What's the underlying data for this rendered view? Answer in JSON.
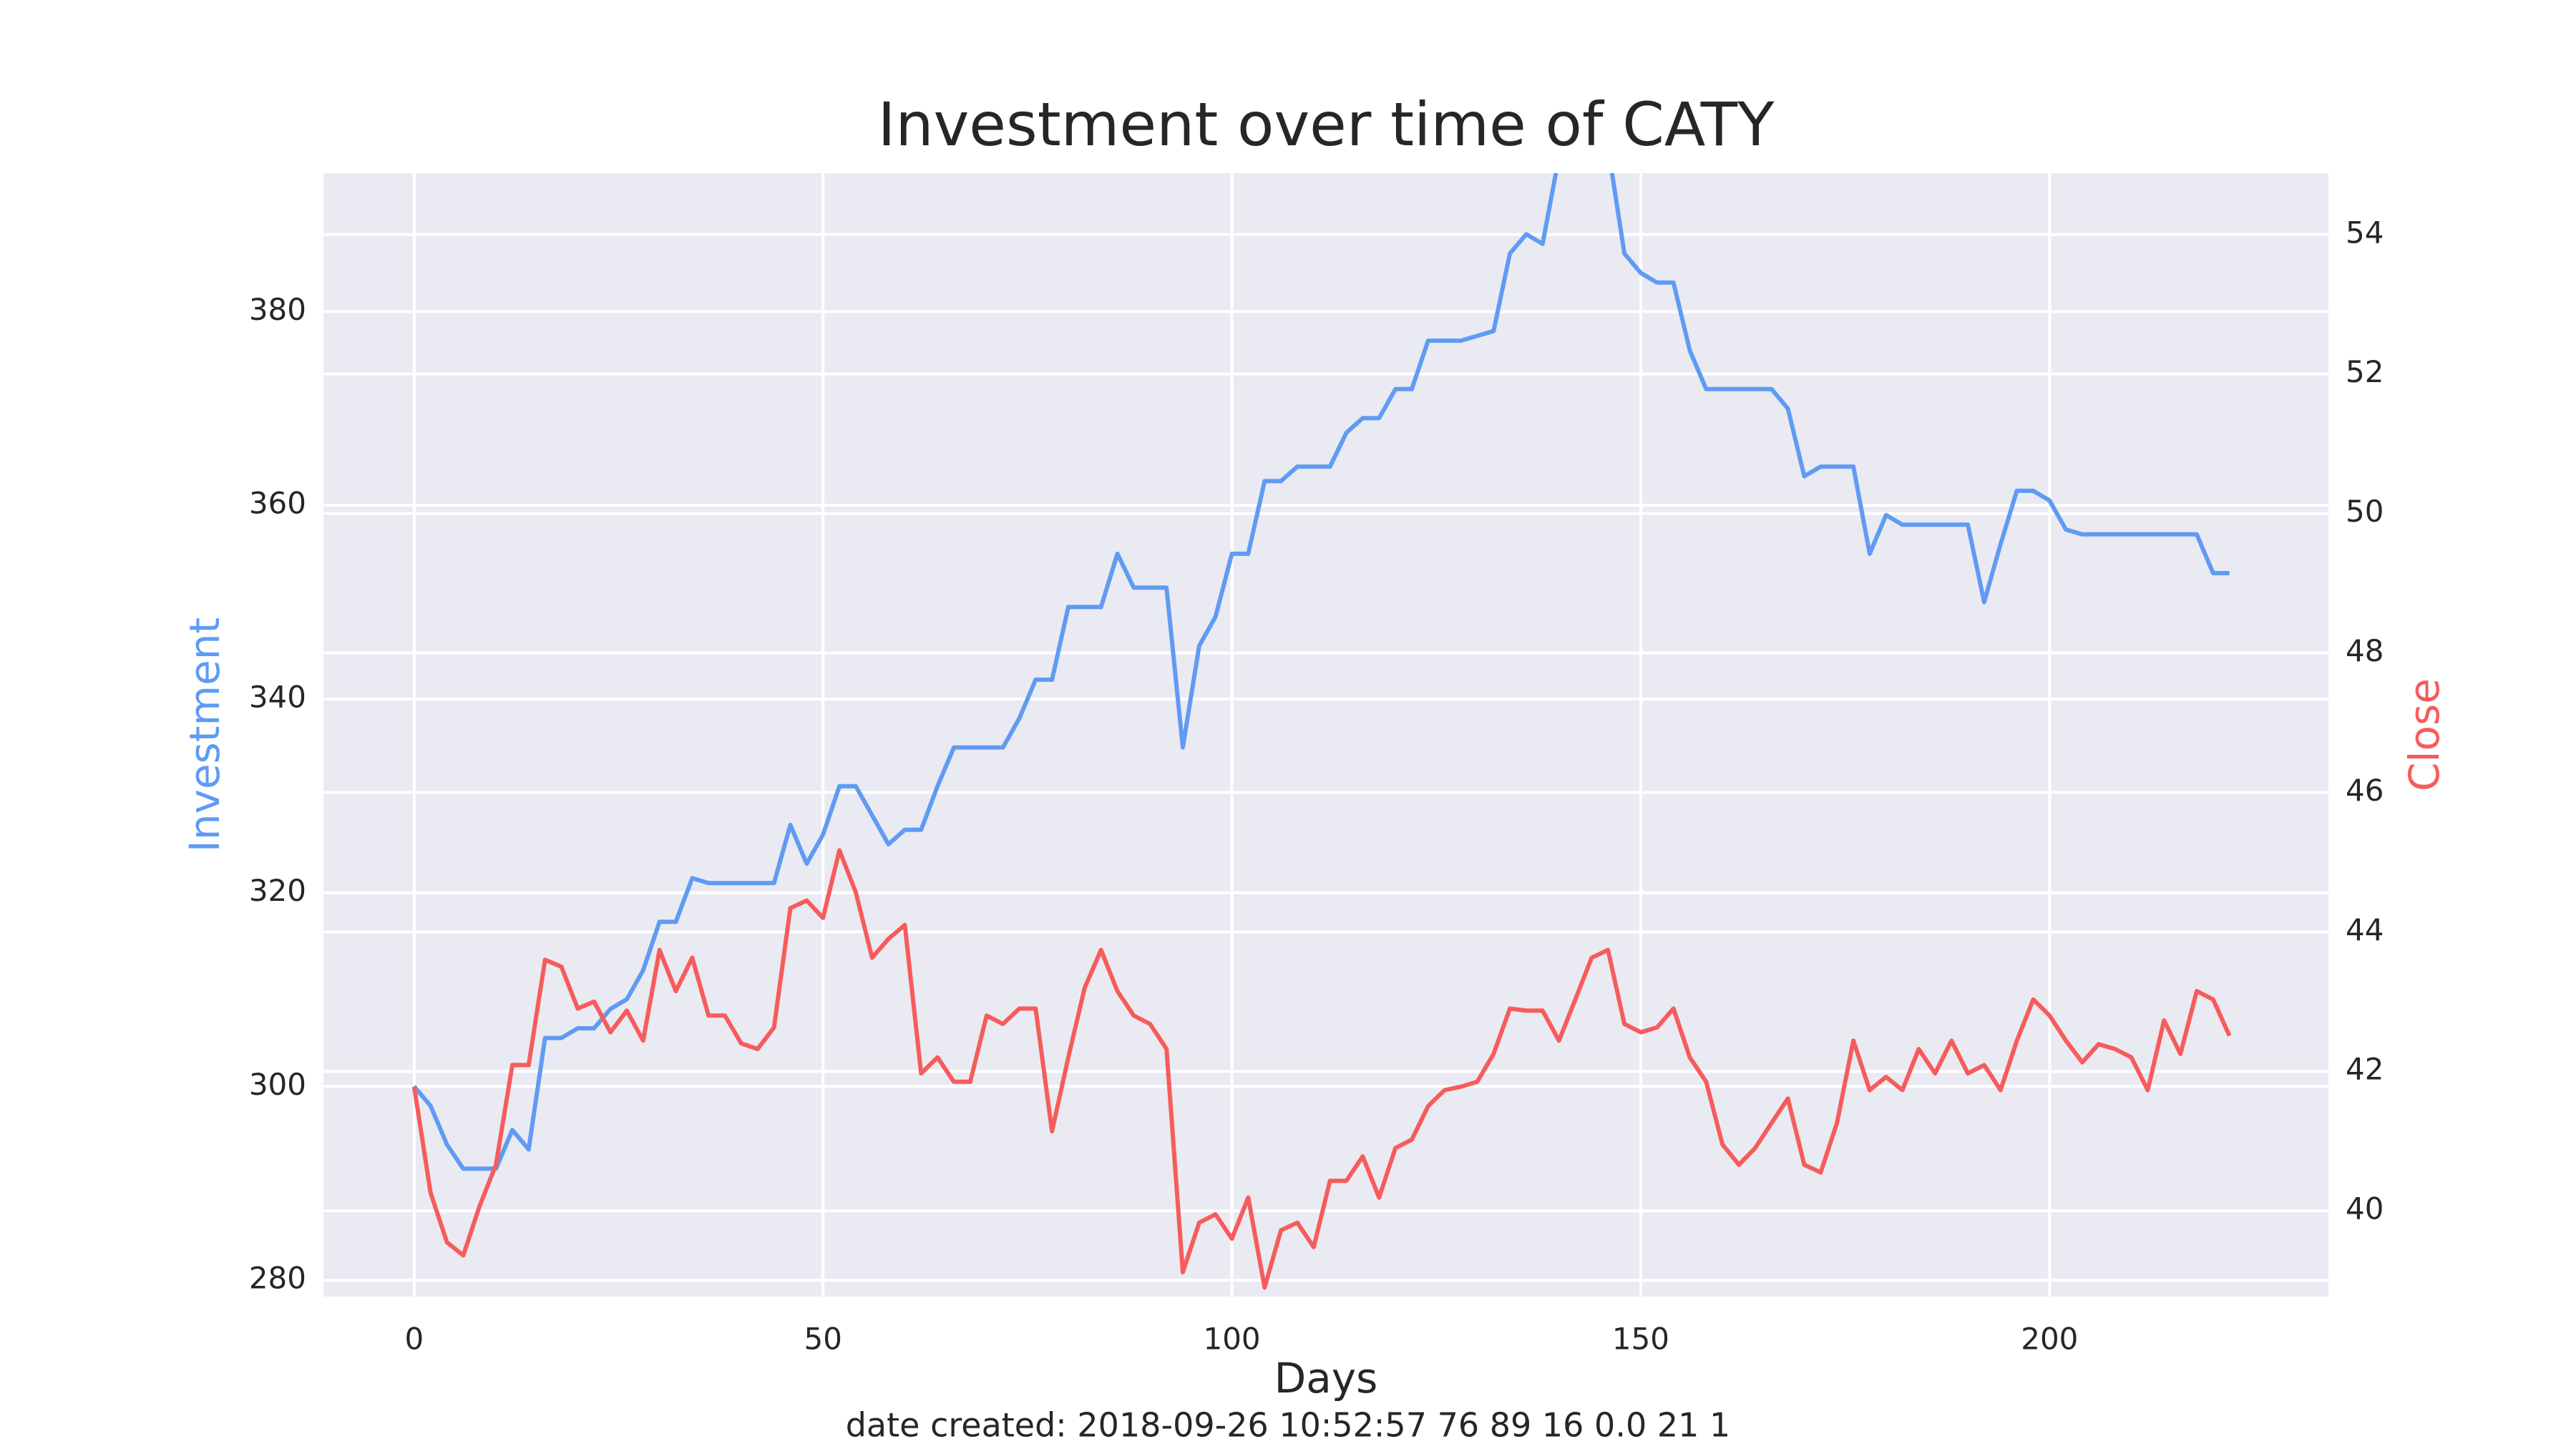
{
  "chart_data": {
    "type": "line",
    "title": "Investment over time of CATY",
    "xlabel": "Days",
    "footnote": "date created: 2018-09-26 10:52:57 76 89 16 0.0 21 1",
    "x": [
      0,
      2,
      4,
      6,
      8,
      10,
      12,
      14,
      16,
      18,
      20,
      22,
      24,
      26,
      28,
      30,
      32,
      34,
      36,
      38,
      40,
      42,
      44,
      46,
      48,
      50,
      52,
      54,
      56,
      58,
      60,
      62,
      64,
      66,
      68,
      70,
      72,
      74,
      76,
      78,
      80,
      82,
      84,
      86,
      88,
      90,
      92,
      94,
      96,
      98,
      100,
      102,
      104,
      106,
      108,
      110,
      112,
      114,
      116,
      118,
      120,
      122,
      124,
      126,
      128,
      130,
      132,
      134,
      136,
      138,
      140,
      142,
      144,
      146,
      148,
      150,
      152,
      154,
      156,
      158,
      160,
      162,
      164,
      166,
      168,
      170,
      172,
      174,
      176,
      178,
      180,
      182,
      184,
      186,
      188,
      190,
      192,
      194,
      196,
      198,
      200,
      202,
      204,
      206,
      208,
      210,
      212,
      214,
      216,
      218,
      220,
      222
    ],
    "series": [
      {
        "name": "Investment",
        "color": "#5f9bf2",
        "axis": "y",
        "values": [
          300,
          298,
          294,
          291.5,
          291.5,
          291.5,
          295.5,
          293.5,
          305,
          305,
          306,
          306,
          308,
          309,
          312,
          317,
          317,
          321.5,
          321,
          321,
          321,
          321,
          321,
          327,
          323,
          326,
          331,
          331,
          328,
          325,
          326.5,
          326.5,
          331,
          335,
          335,
          335,
          335,
          338,
          342,
          342,
          349.5,
          349.5,
          349.5,
          355,
          351.5,
          351.5,
          351.5,
          335,
          345.5,
          348.5,
          355,
          355,
          362.5,
          362.5,
          364,
          364,
          364,
          367.5,
          369,
          369,
          372,
          372,
          377,
          377,
          377,
          377.5,
          378,
          386,
          388,
          387,
          396,
          398,
          399,
          397,
          386,
          384,
          383,
          383,
          376,
          372,
          372,
          372,
          372,
          372,
          370,
          363,
          364,
          364,
          364,
          355,
          359,
          358,
          358,
          358,
          358,
          358,
          350,
          356,
          361.5,
          361.5,
          360.5,
          357.5,
          357,
          357,
          357,
          357,
          357,
          357,
          357,
          357,
          353,
          353
        ]
      },
      {
        "name": "Close",
        "color": "#f65c5c",
        "axis": "y2",
        "values": [
          41.78,
          40.26,
          39.55,
          39.36,
          40.07,
          40.66,
          42.09,
          42.09,
          43.6,
          43.5,
          42.9,
          43.0,
          42.56,
          42.87,
          42.44,
          43.74,
          43.15,
          43.63,
          42.8,
          42.8,
          42.4,
          42.32,
          42.63,
          44.34,
          44.45,
          44.2,
          45.17,
          44.57,
          43.63,
          43.9,
          44.1,
          41.97,
          42.2,
          41.85,
          41.85,
          42.8,
          42.68,
          42.9,
          42.9,
          41.14,
          42.2,
          43.2,
          43.74,
          43.15,
          42.8,
          42.68,
          42.32,
          39.12,
          39.83,
          39.95,
          39.6,
          40.19,
          38.9,
          39.72,
          39.83,
          39.48,
          40.43,
          40.43,
          40.78,
          40.19,
          40.9,
          41.02,
          41.5,
          41.73,
          41.78,
          41.85,
          42.25,
          42.9,
          42.87,
          42.87,
          42.44,
          43.03,
          43.63,
          43.74,
          42.68,
          42.56,
          42.63,
          42.9,
          42.2,
          41.85,
          40.95,
          40.66,
          40.9,
          41.26,
          41.61,
          40.66,
          40.55,
          41.26,
          42.44,
          41.73,
          41.92,
          41.73,
          42.32,
          41.97,
          42.44,
          41.97,
          42.09,
          41.73,
          42.44,
          43.03,
          42.8,
          42.44,
          42.13,
          42.39,
          42.32,
          42.2,
          41.73,
          42.73,
          42.25,
          43.15,
          43.03,
          42.51
        ]
      }
    ],
    "xlim": [
      -11.1,
      234.1
    ],
    "xticks": [
      0,
      50,
      100,
      150,
      200
    ],
    "ylim": [
      278.3,
      394.3
    ],
    "yticks": [
      280,
      300,
      320,
      340,
      360,
      380
    ],
    "y2lim": [
      38.77,
      54.88
    ],
    "y2ticks": [
      40,
      42,
      44,
      46,
      48,
      50,
      52,
      54
    ],
    "grid": true,
    "background": "#eaeaf2"
  }
}
